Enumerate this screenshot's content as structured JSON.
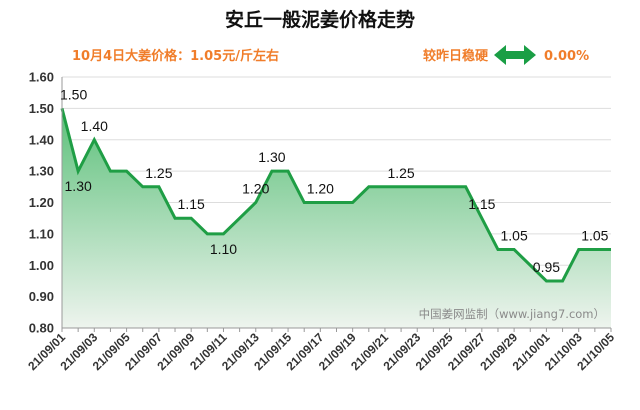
{
  "header": {
    "title": "安丘一般泥姜价格走势",
    "subtitle_left": "10月4日大姜价格：1.05元/斤左右",
    "subtitle_right_label": "较昨日稳硬",
    "change_value": "0.00%",
    "change_icon": "left-right-arrow-icon",
    "accent_color": "#f07d2a",
    "arrow_color": "#1a9e45"
  },
  "watermark": "中国姜网监制（www.jiang7.com）",
  "chart_data": {
    "type": "area",
    "title": "安丘一般泥姜价格走势",
    "xlabel": "",
    "ylabel": "",
    "ylim": [
      0.8,
      1.6
    ],
    "yticks": [
      "0.80",
      "0.90",
      "1.00",
      "1.10",
      "1.20",
      "1.30",
      "1.40",
      "1.50",
      "1.60"
    ],
    "grid": true,
    "line_color": "#1f9e45",
    "fill_top_color": "#5cc07a",
    "fill_bottom_color": "#eef4ee",
    "x": [
      "21/09/01",
      "21/09/02",
      "21/09/03",
      "21/09/04",
      "21/09/05",
      "21/09/06",
      "21/09/07",
      "21/09/08",
      "21/09/09",
      "21/09/10",
      "21/09/11",
      "21/09/12",
      "21/09/13",
      "21/09/14",
      "21/09/15",
      "21/09/16",
      "21/09/17",
      "21/09/18",
      "21/09/19",
      "21/09/20",
      "21/09/21",
      "21/09/22",
      "21/09/23",
      "21/09/24",
      "21/09/25",
      "21/09/26",
      "21/09/27",
      "21/09/28",
      "21/09/29",
      "21/09/30",
      "21/10/01",
      "21/10/02",
      "21/10/03",
      "21/10/04",
      "21/10/05"
    ],
    "xtick_labels": [
      "21/09/01",
      "21/09/03",
      "21/09/05",
      "21/09/07",
      "21/09/09",
      "21/09/11",
      "21/09/13",
      "21/09/15",
      "21/09/17",
      "21/09/19",
      "21/09/21",
      "21/09/23",
      "21/09/25",
      "21/09/27",
      "21/09/29",
      "21/10/01",
      "21/10/03",
      "21/10/05"
    ],
    "series": [
      {
        "values": [
          1.5,
          1.3,
          1.4,
          1.3,
          1.3,
          1.25,
          1.25,
          1.15,
          1.15,
          1.1,
          1.1,
          1.15,
          1.2,
          1.3,
          1.3,
          1.2,
          1.2,
          1.2,
          1.2,
          1.25,
          1.25,
          1.25,
          1.25,
          1.25,
          1.25,
          1.25,
          1.15,
          1.05,
          1.05,
          1.0,
          0.95,
          0.95,
          1.05,
          1.05,
          1.05
        ]
      }
    ],
    "data_labels": [
      {
        "index": 0,
        "text": "1.50",
        "pos": "above"
      },
      {
        "index": 1,
        "text": "1.30",
        "pos": "below"
      },
      {
        "index": 2,
        "text": "1.40",
        "pos": "above"
      },
      {
        "index": 6,
        "text": "1.25",
        "pos": "above"
      },
      {
        "index": 8,
        "text": "1.15",
        "pos": "above"
      },
      {
        "index": 10,
        "text": "1.10",
        "pos": "below"
      },
      {
        "index": 12,
        "text": "1.20",
        "pos": "above"
      },
      {
        "index": 13,
        "text": "1.30",
        "pos": "above"
      },
      {
        "index": 16,
        "text": "1.20",
        "pos": "above"
      },
      {
        "index": 21,
        "text": "1.25",
        "pos": "above"
      },
      {
        "index": 26,
        "text": "1.15",
        "pos": "above"
      },
      {
        "index": 28,
        "text": "1.05",
        "pos": "above"
      },
      {
        "index": 30,
        "text": "0.95",
        "pos": "above"
      },
      {
        "index": 33,
        "text": "1.05",
        "pos": "above"
      }
    ]
  }
}
